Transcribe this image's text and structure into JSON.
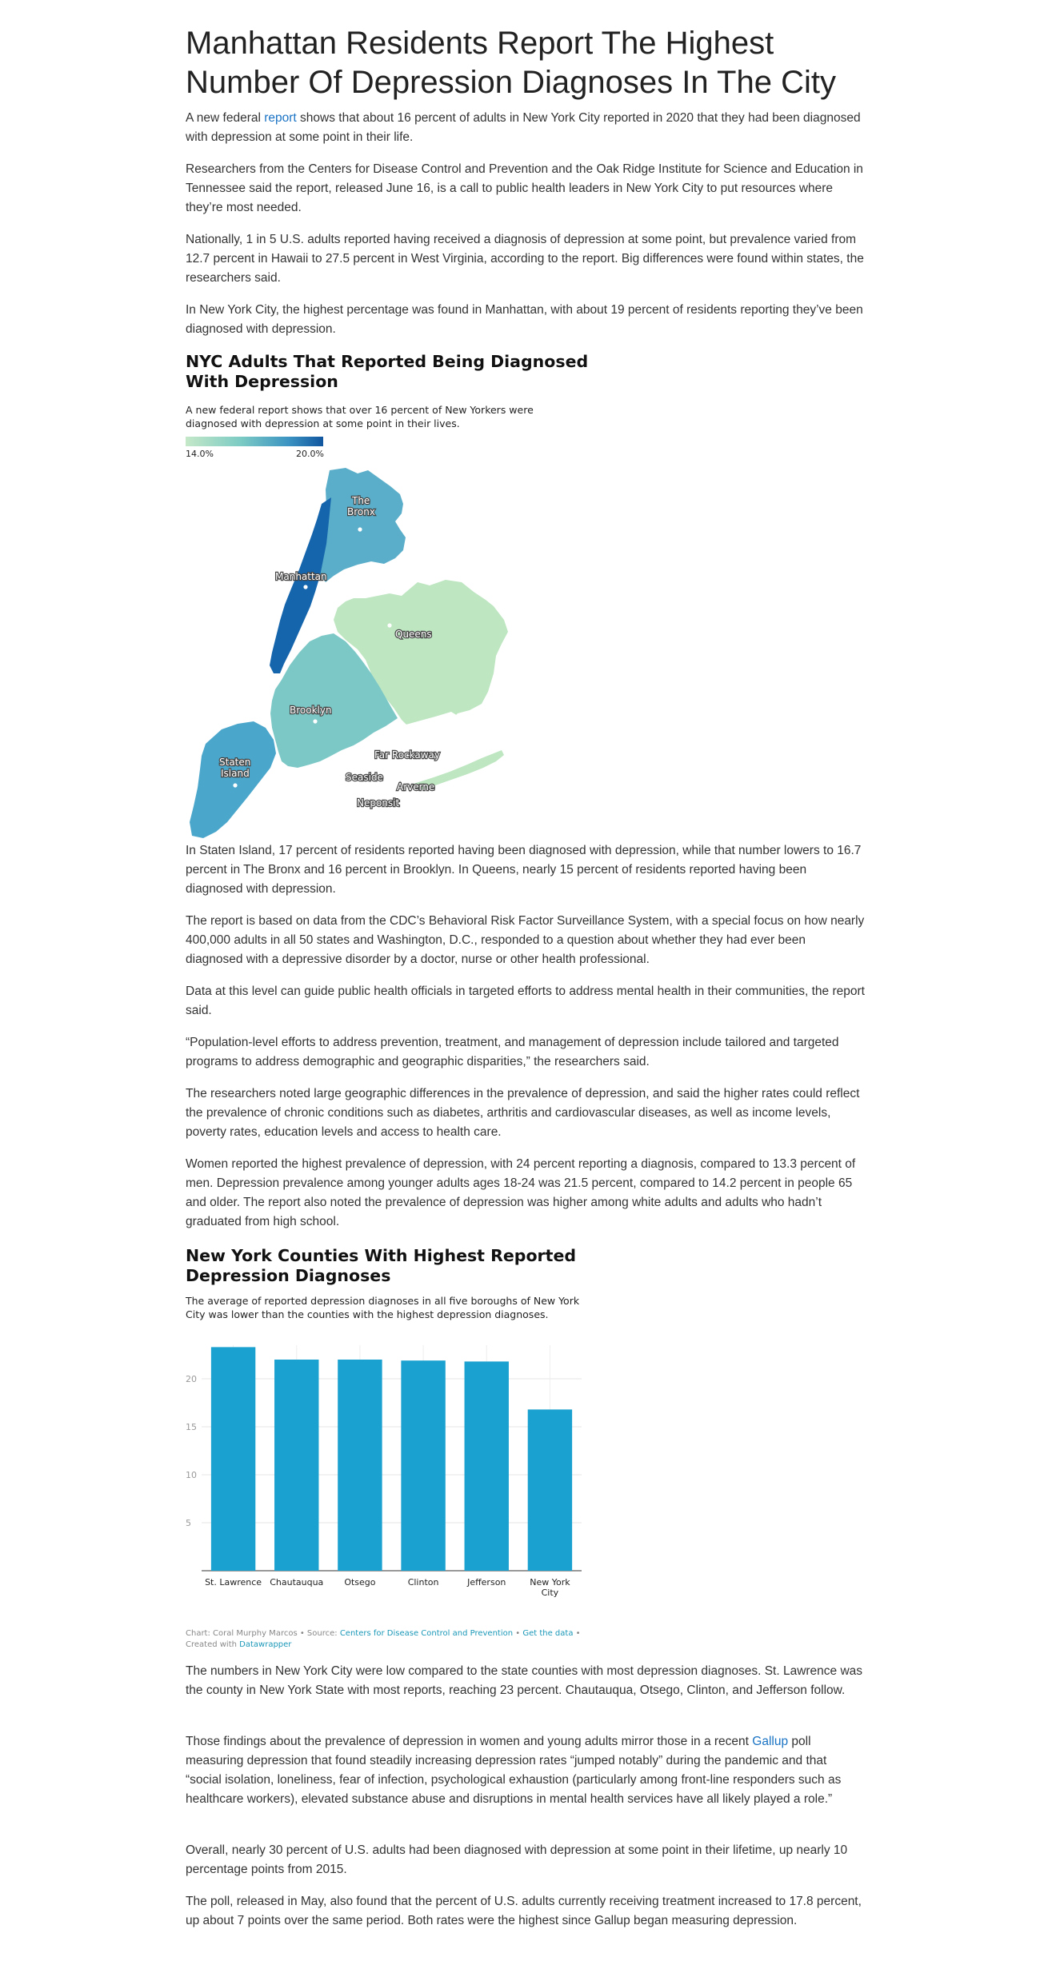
{
  "article": {
    "title": "Manhattan Residents Report The Highest Number Of Depression Diagnoses In The City",
    "p1_before": "A new federal ",
    "p1_link": "report",
    "p1_after": " shows that about 16 percent of adults in New York City reported in 2020 that they had been diagnosed with depression at some point in their life.",
    "p2": "Researchers from the Centers for Disease Control and Prevention and the Oak Ridge Institute for Science and Education in Tennessee said the report, released June 16, is a call to public health leaders in New York City to put resources where they’re most needed.",
    "p3": "Nationally, 1 in 5 U.S. adults reported having received a diagnosis of depression at some point, but prevalence varied from 12.7 percent in Hawaii to 27.5 percent in West Virginia, according to the report. Big differences were found within states, the researchers said.",
    "p4": "In New York City, the highest percentage was found in Manhattan, with about 19 percent of residents reporting they’ve been diagnosed with depression.",
    "p5": "In Staten Island, 17 percent of residents reported having been diagnosed with depression, while that number lowers to 16.7 percent in The Bronx and 16 percent in Brooklyn. In Queens, nearly 15 percent of residents reported having been diagnosed with depression.",
    "p6": "The report is based on data from the CDC’s Behavioral Risk Factor Surveillance System, with a special focus on how nearly 400,000 adults in all 50 states and Washington, D.C., responded to a question about whether they had ever been diagnosed with a depressive disorder by a doctor, nurse or other health professional.",
    "p7": "Data at this level can guide public health officials in targeted efforts to address mental health in their communities, the report said.",
    "p8": "“Population-level efforts to address prevention, treatment, and management of depression include tailored and targeted programs to address demographic and geographic disparities,” the researchers said.",
    "p9": "The researchers noted large geographic differences in the prevalence of depression, and said the higher rates could reflect the prevalence of chronic conditions such as diabetes, arthritis and cardiovascular diseases, as well as income levels, poverty rates, education levels and access to health care.",
    "p10": "Women reported the highest prevalence of depression, with 24 percent reporting a diagnosis, compared to 13.3 percent of men. Depression prevalence among younger adults ages 18-24 was 21.5 percent, compared to 14.2 percent in people 65 and older. The report also noted the prevalence of depression was higher among white adults and adults who hadn’t graduated from high school.",
    "p11": "The numbers in New York City were low compared to the state counties with most depression diagnoses. St. Lawrence was the county in New York State with most reports, reaching 23 percent. Chautauqua, Otsego, Clinton, and Jefferson follow.",
    "p12_before": "Those findings about the prevalence of depression in women and young adults mirror those in a recent ",
    "p12_link": "Gallup",
    "p12_after": " poll measuring depression that found steadily increasing depression rates “jumped notably” during the pandemic and that “social isolation, loneliness, fear of infection, psychological exhaustion (particularly among front-line responders such as healthcare workers), elevated substance abuse and disruptions in mental health services have all likely played a role.”",
    "p13": "Overall, nearly 30 percent of U.S. adults had been diagnosed with depression at some point in their lifetime, up nearly 10 percentage points from 2015.",
    "p14": "The poll, released in May, also found that the percent of U.S. adults currently receiving treatment increased to 17.8 percent, up about 7 points over the same period. Both rates were the highest since Gallup began measuring depression."
  },
  "map": {
    "title": "NYC Adults That Reported Being Diagnosed With Depression",
    "description": "A new federal report shows that over 16 percent of New Yorkers were diagnosed with depression at some point in their lives.",
    "legend_min": "14.0%",
    "legend_max": "20.0%",
    "colors": {
      "manhattan": "#1565ad",
      "bronx": "#5aaec9",
      "staten_island": "#4ba6cb",
      "brooklyn": "#7cc8c6",
      "queens": "#bde6c1"
    },
    "labels": {
      "bronx_1": "The",
      "bronx_2": "Bronx",
      "manhattan": "Manhattan",
      "queens": "Queens",
      "brooklyn": "Brooklyn",
      "staten_1": "Staten",
      "staten_2": "Island",
      "far_rockaway": "Far Rockaway",
      "seaside": "Seaside",
      "arverne": "Arverne",
      "neponsit": "Neponsit"
    }
  },
  "bar_chart": {
    "title": "New York Counties With Highest Reported Depression Diagnoses",
    "description": "The average of reported depression diagnoses in all five boroughs of New York City was lower than the counties with the highest depression diagnoses.",
    "credit_prefix": "Chart: Coral Murphy Marcos • Source: ",
    "credit_source": "Centers for Disease Control and Prevention",
    "credit_sep": " • ",
    "credit_get_data": "Get the data",
    "credit_created": " • Created with ",
    "credit_tool": "Datawrapper"
  },
  "chart_data": {
    "type": "bar",
    "categories": [
      "St. Lawrence",
      "Chautauqua",
      "Otsego",
      "Clinton",
      "Jefferson",
      "New York City"
    ],
    "values": [
      23.3,
      22,
      22,
      21.9,
      21.8,
      16.8
    ],
    "ylim": [
      0,
      23.5
    ],
    "yticks": [
      5,
      10,
      15,
      20
    ],
    "color": "#1ba1cf",
    "grid": true
  }
}
